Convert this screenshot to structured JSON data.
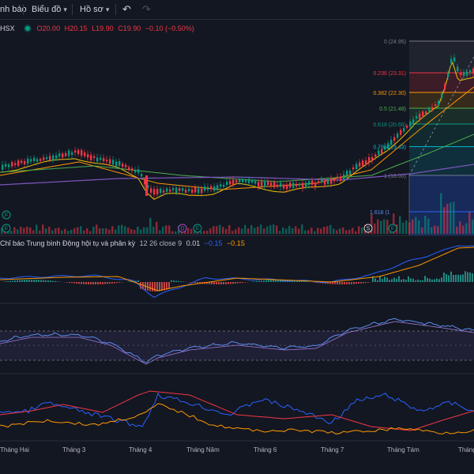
{
  "toolbar": {
    "alerts_label": "nh báo",
    "chart_label": "Biểu đồ",
    "profile_label": "Hồ sơ",
    "undo_icon": "undo-icon",
    "redo_icon": "redo-icon"
  },
  "legend": {
    "symbol": "HSX",
    "open": "O20.00",
    "high": "H20.15",
    "low": "L19.90",
    "close": "C19.90",
    "change": "−0.10 (−0.50%)",
    "colors": {
      "down": "#f23645",
      "up": "#089981"
    }
  },
  "fibonacci": {
    "levels": [
      {
        "label": "0 (24.95)",
        "ratio": 0,
        "color": "#787b86"
      },
      {
        "label": "0.236 (23.31)",
        "ratio": 0.236,
        "color": "#f23645"
      },
      {
        "label": "0.382 (22.30)",
        "ratio": 0.382,
        "color": "#ff9800"
      },
      {
        "label": "0.5 (21.48)",
        "ratio": 0.5,
        "color": "#4caf50"
      },
      {
        "label": "0.618 (20.66)",
        "ratio": 0.618,
        "color": "#089981"
      },
      {
        "label": "0.786 (19.49)",
        "ratio": 0.786,
        "color": "#00bcd4"
      },
      {
        "label": "1 (18.00)",
        "ratio": 1,
        "color": "#787b86"
      }
    ],
    "extension_label": "1.618 (1"
  },
  "event_markers": [
    {
      "letter": "F"
    },
    {
      "letter": "F"
    },
    {
      "letter": "D"
    },
    {
      "letter": "F"
    },
    {
      "letter": "S"
    },
    {
      "letter": "F"
    }
  ],
  "macd": {
    "title": "Chỉ báo Trung bình Động hội tụ và phân kỳ",
    "params": "12 26 close 9",
    "v1": "0.01",
    "v2": "−0.15",
    "v3": "−0.15"
  },
  "x_axis": [
    "Tháng Hai",
    "Tháng 3",
    "Tháng 4",
    "Tháng Năm",
    "Tháng 6",
    "Tháng 7",
    "Tháng Tám",
    "Tháng"
  ]
}
